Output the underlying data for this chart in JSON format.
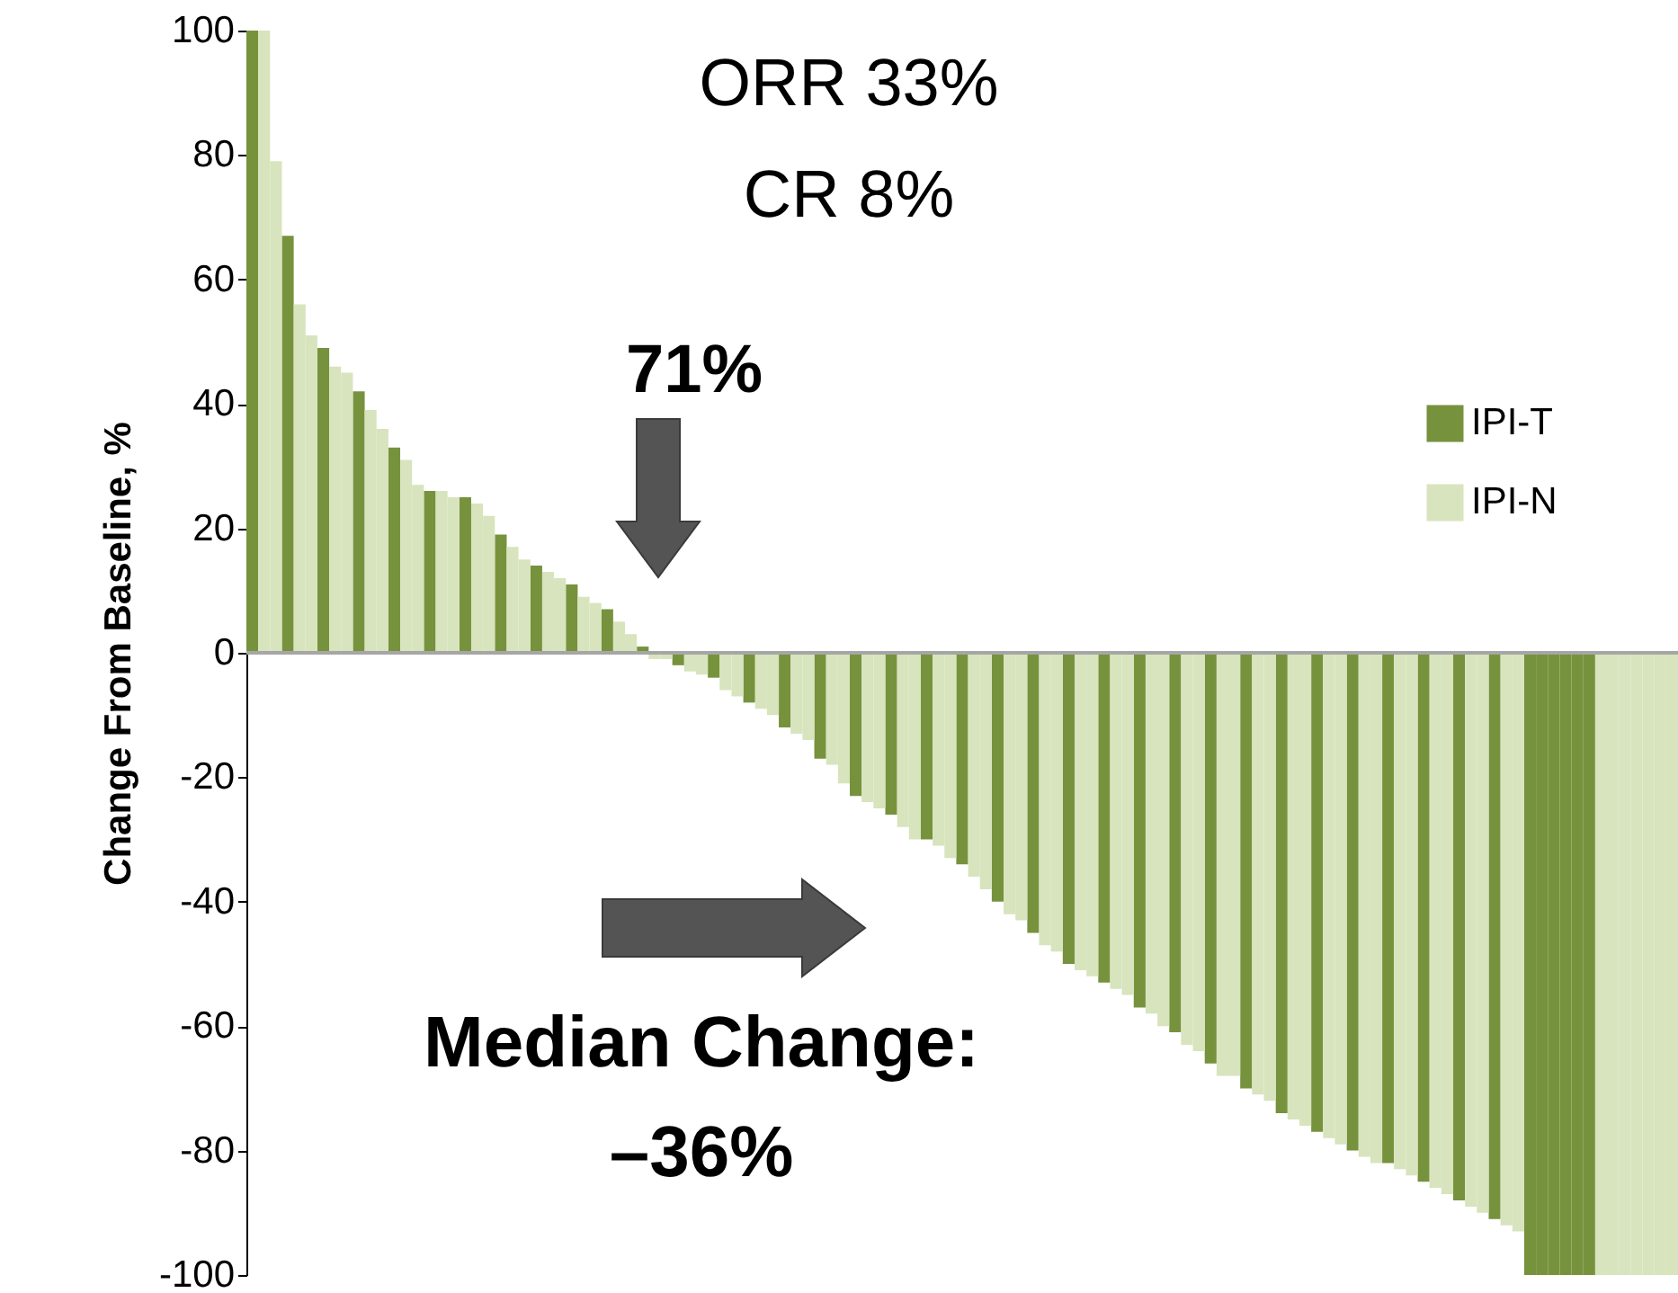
{
  "chart_data": {
    "type": "bar",
    "ylabel": "Change From Baseline, %",
    "ylim": [
      -100,
      100
    ],
    "yticks": [
      -100,
      -80,
      -60,
      -40,
      -20,
      0,
      20,
      40,
      60,
      80,
      100
    ],
    "legend": "right",
    "grid": false,
    "annotations": [
      "ORR 33%",
      "CR 8%",
      "71%",
      "Median Change:",
      "–36%"
    ],
    "ref_lines": [
      {
        "axis": "y",
        "value": 0,
        "color": "#a6a6a6"
      }
    ],
    "categories": [
      null,
      null,
      null,
      null,
      null,
      null,
      null,
      null,
      null,
      null,
      null,
      null,
      null,
      null,
      null,
      null,
      null,
      null,
      null,
      null,
      null,
      null,
      null,
      null,
      null,
      null,
      null,
      null,
      null,
      null,
      null,
      null,
      null,
      null,
      null,
      null,
      null,
      null,
      null,
      null,
      null,
      null,
      null,
      null,
      null,
      null,
      null,
      null,
      null,
      null,
      null,
      null,
      null,
      null,
      null,
      null,
      null,
      null,
      null,
      null,
      null,
      null,
      null,
      null,
      null,
      null,
      null,
      null,
      null,
      null,
      null,
      null,
      null,
      null,
      null,
      null,
      null,
      null,
      null,
      null,
      null,
      null,
      null,
      null,
      null,
      null,
      null,
      null,
      null,
      null,
      null,
      null,
      null,
      null,
      null,
      null,
      null,
      null,
      null,
      null,
      null,
      null,
      null,
      null,
      null,
      null,
      null,
      null,
      null,
      null,
      null,
      null,
      null,
      null,
      null,
      null,
      null,
      null,
      null,
      null,
      null
    ],
    "series": [
      {
        "name": "IPI-T",
        "color": "#76923c",
        "values": [
          100,
          null,
          null,
          67,
          null,
          null,
          49,
          null,
          null,
          42,
          null,
          null,
          33,
          null,
          null,
          26,
          null,
          null,
          25,
          null,
          null,
          19,
          null,
          null,
          14,
          null,
          null,
          11,
          null,
          null,
          7,
          null,
          null,
          1,
          null,
          null,
          -2,
          null,
          null,
          -4,
          null,
          null,
          -8,
          null,
          null,
          -12,
          null,
          null,
          -17,
          null,
          null,
          -23,
          null,
          null,
          -26,
          null,
          null,
          -30,
          null,
          null,
          -34,
          null,
          null,
          -40,
          null,
          null,
          -45,
          null,
          null,
          -50,
          null,
          null,
          -53,
          null,
          null,
          -57,
          null,
          null,
          -61,
          null,
          null,
          -66,
          null,
          null,
          -70,
          null,
          null,
          -74,
          null,
          null,
          -77,
          null,
          null,
          -80,
          null,
          null,
          -82,
          null,
          null,
          -85,
          null,
          null,
          -88,
          null,
          null,
          -91,
          null,
          null,
          -100,
          -100,
          -100,
          -100,
          -100,
          -100,
          null,
          null,
          null,
          null,
          null,
          null,
          null
        ]
      },
      {
        "name": "IPI-N",
        "color": "#d7e4bd",
        "values": [
          null,
          100,
          79,
          null,
          56,
          51,
          null,
          46,
          45,
          null,
          39,
          36,
          null,
          31,
          27,
          null,
          26,
          25,
          null,
          24,
          22,
          null,
          17,
          15,
          null,
          13,
          12,
          null,
          9,
          8,
          null,
          5,
          3,
          null,
          -1,
          -1,
          null,
          -3,
          -3.5,
          null,
          -6,
          -7,
          null,
          -9,
          -10,
          null,
          -13,
          -14,
          null,
          -18,
          -21,
          null,
          -24,
          -25,
          null,
          -28,
          -30,
          null,
          -31,
          -33,
          null,
          -36,
          -38,
          null,
          -42,
          -43,
          null,
          -47,
          -48,
          null,
          -51,
          -52,
          null,
          -54,
          -55,
          null,
          -58,
          -60,
          null,
          -63,
          -64,
          null,
          -68,
          -68,
          null,
          -71,
          -72,
          null,
          -75,
          -76,
          null,
          -78,
          -79,
          null,
          -81,
          -82,
          null,
          -83,
          -84,
          null,
          -86,
          -87,
          null,
          -89,
          -90,
          null,
          -92,
          -93,
          null,
          null,
          null,
          null,
          null,
          null,
          -100,
          -100,
          -100,
          -100,
          -100,
          -100,
          -100
        ]
      }
    ]
  }
}
